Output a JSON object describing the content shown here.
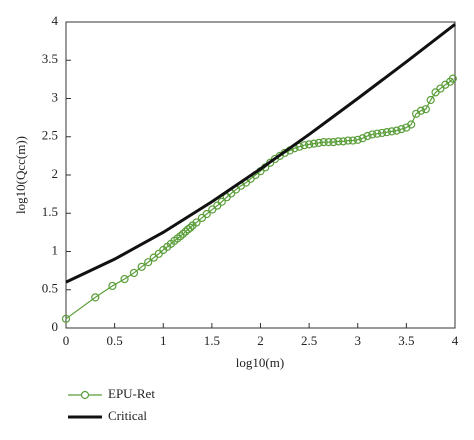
{
  "chart_data": {
    "type": "line",
    "xlabel": "log10(m)",
    "ylabel": "log10(Qcc(m))",
    "xlim": [
      0,
      4
    ],
    "ylim": [
      0,
      4
    ],
    "xticks": [
      0,
      0.5,
      1,
      1.5,
      2,
      2.5,
      3,
      3.5,
      4
    ],
    "yticks": [
      0,
      0.5,
      1,
      1.5,
      2,
      2.5,
      3,
      3.5,
      4
    ],
    "series": [
      {
        "name": "EPU-Ret",
        "color": "#5a9e3a",
        "marker": "circle",
        "x": [
          0,
          0.301,
          0.477,
          0.602,
          0.699,
          0.778,
          0.845,
          0.903,
          0.954,
          1,
          1.041,
          1.079,
          1.114,
          1.146,
          1.176,
          1.204,
          1.23,
          1.255,
          1.279,
          1.301,
          1.342,
          1.398,
          1.447,
          1.505,
          1.556,
          1.602,
          1.653,
          1.699,
          1.748,
          1.799,
          1.851,
          1.898,
          1.949,
          2,
          2.049,
          2.1,
          2.149,
          2.199,
          2.25,
          2.301,
          2.35,
          2.4,
          2.45,
          2.5,
          2.55,
          2.6,
          2.65,
          2.7,
          2.75,
          2.8,
          2.85,
          2.9,
          2.95,
          3,
          3.05,
          3.1,
          3.15,
          3.2,
          3.25,
          3.3,
          3.35,
          3.4,
          3.45,
          3.5,
          3.55,
          3.6,
          3.65,
          3.7,
          3.75,
          3.8,
          3.85,
          3.9,
          3.95,
          3.978
        ],
        "values": [
          0.12,
          0.4,
          0.55,
          0.64,
          0.72,
          0.8,
          0.86,
          0.92,
          0.97,
          1.02,
          1.06,
          1.1,
          1.14,
          1.17,
          1.2,
          1.23,
          1.26,
          1.29,
          1.31,
          1.34,
          1.38,
          1.44,
          1.49,
          1.55,
          1.6,
          1.65,
          1.71,
          1.76,
          1.81,
          1.86,
          1.9,
          1.95,
          2,
          2.05,
          2.1,
          2.16,
          2.21,
          2.25,
          2.29,
          2.32,
          2.35,
          2.37,
          2.39,
          2.4,
          2.41,
          2.42,
          2.43,
          2.43,
          2.43,
          2.44,
          2.44,
          2.45,
          2.45,
          2.46,
          2.48,
          2.51,
          2.53,
          2.54,
          2.55,
          2.56,
          2.57,
          2.58,
          2.6,
          2.62,
          2.66,
          2.8,
          2.84,
          2.86,
          2.98,
          3.08,
          3.13,
          3.18,
          3.22,
          3.26
        ]
      },
      {
        "name": "Critical",
        "color": "#111111",
        "x": [
          0,
          0.5,
          1,
          1.5,
          2,
          2.5,
          3,
          3.5,
          4
        ],
        "values": [
          0.6,
          0.9,
          1.25,
          1.65,
          2.08,
          2.53,
          3.0,
          3.48,
          3.97
        ]
      }
    ]
  }
}
